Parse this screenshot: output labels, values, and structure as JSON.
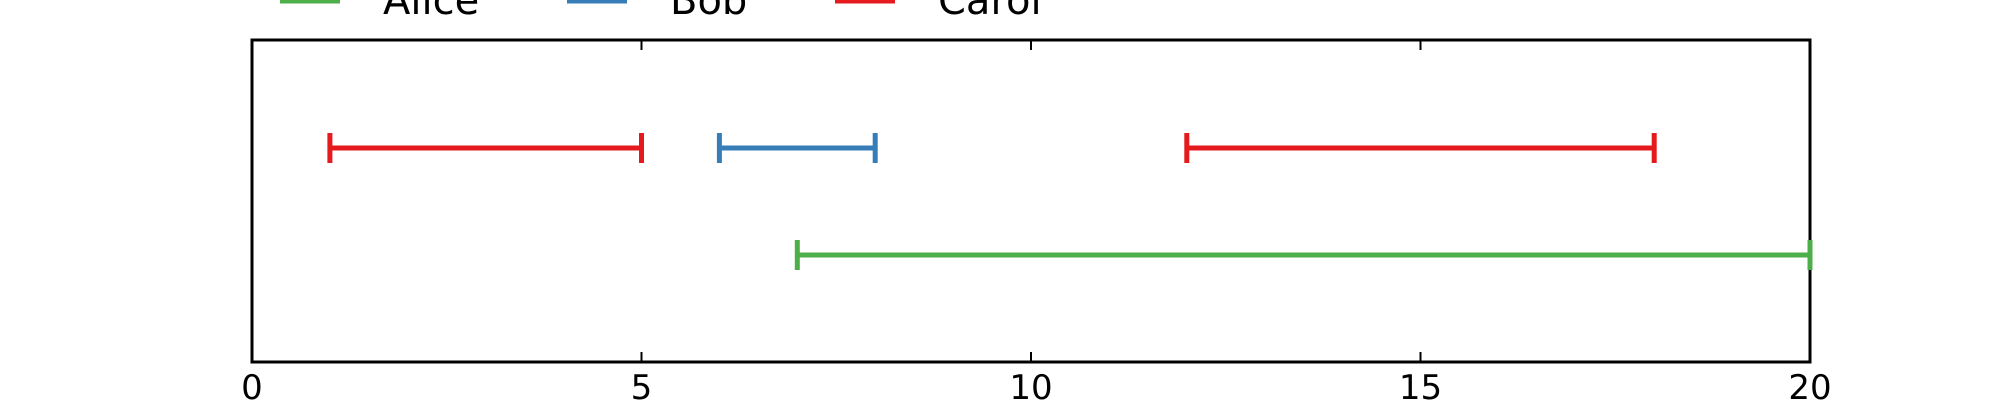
{
  "chart_data": {
    "type": "timeline",
    "title": "",
    "xlabel": "",
    "ylabel": "",
    "xlim": [
      0,
      20
    ],
    "xticks": [
      0,
      5,
      10,
      15,
      20
    ],
    "xtick_labels": [
      "0",
      "5",
      "10",
      "15",
      "20"
    ],
    "grid": false,
    "legend_position": "top",
    "series": [
      {
        "name": "Alice",
        "color": "#4daf4a"
      },
      {
        "name": "Bob",
        "color": "#377eb8"
      },
      {
        "name": "Carol",
        "color": "#e41a1c"
      }
    ],
    "intervals": [
      {
        "series": "Carol",
        "row": 1,
        "start": 1,
        "end": 5
      },
      {
        "series": "Bob",
        "row": 1,
        "start": 6,
        "end": 8
      },
      {
        "series": "Carol",
        "row": 1,
        "start": 12,
        "end": 18
      },
      {
        "series": "Alice",
        "row": 2,
        "start": 7,
        "end": 20
      }
    ]
  }
}
